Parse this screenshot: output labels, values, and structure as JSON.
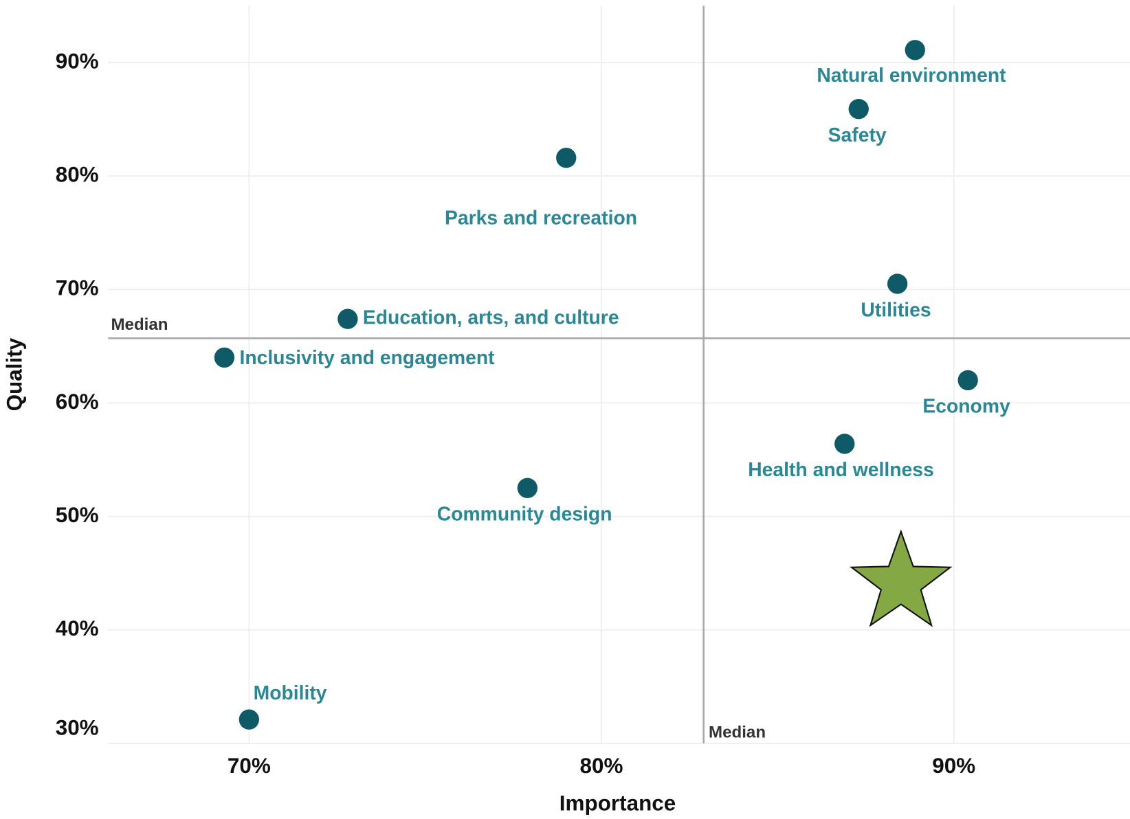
{
  "chart_data": {
    "type": "scatter",
    "x_label": "Importance",
    "y_label": "Quality",
    "xlim": [
      66,
      95
    ],
    "ylim": [
      30,
      95
    ],
    "xticks": [
      {
        "value": 70,
        "label": "70%"
      },
      {
        "value": 80,
        "label": "80%"
      },
      {
        "value": 90,
        "label": "90%"
      }
    ],
    "yticks": [
      {
        "value": 30,
        "label": "30%"
      },
      {
        "value": 40,
        "label": "40%"
      },
      {
        "value": 50,
        "label": "50%"
      },
      {
        "value": 60,
        "label": "60%"
      },
      {
        "value": 70,
        "label": "70%"
      },
      {
        "value": 80,
        "label": "80%"
      },
      {
        "value": 90,
        "label": "90%"
      }
    ],
    "grid": true,
    "color": "#0e5a66",
    "label_color": "#2a8896",
    "points": {
      "labels": [
        "Natural environment",
        "Safety",
        "Parks and recreation",
        "Utilities",
        "Education, arts, and culture",
        "Inclusivity and engagement",
        "Economy",
        "Health and wellness",
        "Community design",
        "Mobility"
      ],
      "x": [
        88.9,
        87.3,
        79.0,
        88.4,
        72.8,
        69.3,
        90.4,
        86.9,
        77.9,
        70.0
      ],
      "y": [
        91.1,
        85.9,
        81.6,
        70.5,
        67.4,
        64.0,
        62.0,
        56.4,
        52.5,
        32.1
      ]
    },
    "median_x": {
      "value": 82.9,
      "label": "Median"
    },
    "median_y": {
      "value": 65.7,
      "label": "Median"
    },
    "highlight": {
      "x": 88.5,
      "y": 44.1,
      "color": "#84a844"
    }
  }
}
